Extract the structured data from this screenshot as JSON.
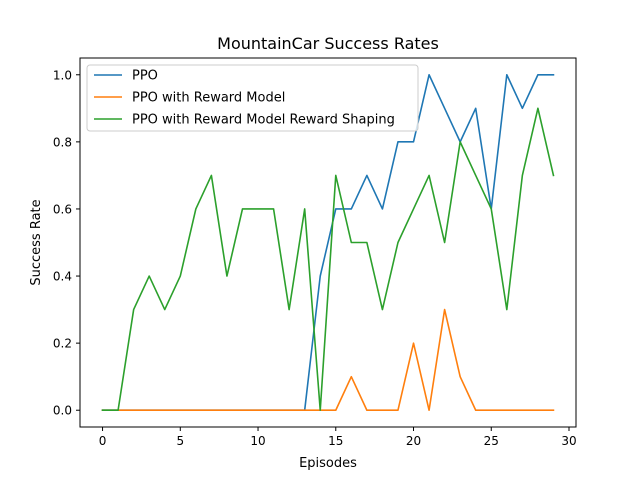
{
  "chart_data": {
    "type": "line",
    "title": "MountainCar Success Rates",
    "xlabel": "Episodes",
    "ylabel": "Success Rate",
    "xlim": [
      -1.45,
      30.45
    ],
    "ylim": [
      -0.05,
      1.05
    ],
    "xticks": [
      0,
      5,
      10,
      15,
      20,
      25,
      30
    ],
    "xtick_labels": [
      "0",
      "5",
      "10",
      "15",
      "20",
      "25",
      "30"
    ],
    "yticks": [
      0.0,
      0.2,
      0.4,
      0.6,
      0.8,
      1.0
    ],
    "ytick_labels": [
      "0.0",
      "0.2",
      "0.4",
      "0.6",
      "0.8",
      "1.0"
    ],
    "grid": false,
    "legend_position": "upper-left",
    "x": [
      0,
      1,
      2,
      3,
      4,
      5,
      6,
      7,
      8,
      9,
      10,
      11,
      12,
      13,
      14,
      15,
      16,
      17,
      18,
      19,
      20,
      21,
      22,
      23,
      24,
      25,
      26,
      27,
      28,
      29
    ],
    "series": [
      {
        "name": "PPO",
        "color": "#1f77b4",
        "values": [
          0,
          0,
          0,
          0,
          0,
          0,
          0,
          0,
          0,
          0,
          0,
          0,
          0,
          0,
          0.4,
          0.6,
          0.6,
          0.7,
          0.6,
          0.8,
          0.8,
          1.0,
          0.9,
          0.8,
          0.9,
          0.6,
          1.0,
          0.9,
          1.0,
          1.0
        ]
      },
      {
        "name": "PPO with Reward Model",
        "color": "#ff7f0e",
        "values": [
          0,
          0,
          0,
          0,
          0,
          0,
          0,
          0,
          0,
          0,
          0,
          0,
          0,
          0,
          0,
          0,
          0.1,
          0,
          0,
          0,
          0.2,
          0,
          0.3,
          0.1,
          0,
          0,
          0,
          0,
          0,
          0
        ]
      },
      {
        "name": "PPO with Reward Model Reward Shaping",
        "color": "#2ca02c",
        "values": [
          0,
          0,
          0.3,
          0.4,
          0.3,
          0.4,
          0.6,
          0.7,
          0.4,
          0.6,
          0.6,
          0.6,
          0.3,
          0.6,
          0,
          0.7,
          0.5,
          0.5,
          0.3,
          0.5,
          0.6,
          0.7,
          0.5,
          0.8,
          0.7,
          0.6,
          0.3,
          0.7,
          0.9,
          0.7
        ]
      }
    ]
  }
}
